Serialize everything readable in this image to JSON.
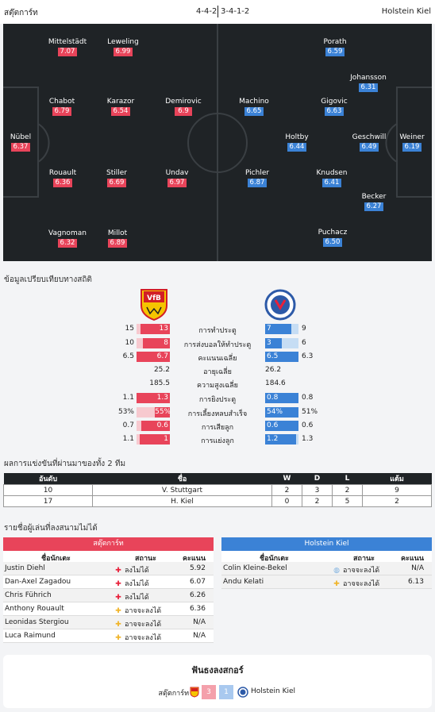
{
  "header": {
    "home_team": "สตุ๊ตการ์ท",
    "formation": "4-4-2",
    "away_formation": "3-4-1-2",
    "away_team": "Holstein Kiel"
  },
  "lineup": {
    "home": [
      {
        "name": "Mittelstädt",
        "rating": "7.07"
      },
      {
        "name": "Leweling",
        "rating": "6.99"
      },
      {
        "name": "Chabot",
        "rating": "6.79"
      },
      {
        "name": "Karazor",
        "rating": "6.54"
      },
      {
        "name": "Demirovic",
        "rating": "6.9"
      },
      {
        "name": "Nübel",
        "rating": "6.37"
      },
      {
        "name": "Rouault",
        "rating": "6.36"
      },
      {
        "name": "Stiller",
        "rating": "6.69"
      },
      {
        "name": "Undav",
        "rating": "6.97"
      },
      {
        "name": "Vagnoman",
        "rating": "6.32"
      },
      {
        "name": "Millot",
        "rating": "6.89"
      }
    ],
    "away": [
      {
        "name": "Porath",
        "rating": "6.59"
      },
      {
        "name": "Johansson",
        "rating": "6.31"
      },
      {
        "name": "Machino",
        "rating": "6.65"
      },
      {
        "name": "Gigovic",
        "rating": "6.63"
      },
      {
        "name": "Holtby",
        "rating": "6.44"
      },
      {
        "name": "Geschwill",
        "rating": "6.49"
      },
      {
        "name": "Weiner",
        "rating": "6.19"
      },
      {
        "name": "Pichler",
        "rating": "6.87"
      },
      {
        "name": "Knudsen",
        "rating": "6.41"
      },
      {
        "name": "Becker",
        "rating": "6.27"
      },
      {
        "name": "Puchacz",
        "rating": "6.50"
      }
    ]
  },
  "stats": {
    "title": "ข้อมูลเปรียบเทียบทางสถิติ",
    "rows": [
      {
        "label": "การทำประตู",
        "h_total": "15",
        "h_val": "13",
        "h_frac": 0.87,
        "a_val": "7",
        "a_total": "9",
        "a_frac": 0.78,
        "bar": true
      },
      {
        "label": "การส่งบอลให้ทำประตู",
        "h_total": "10",
        "h_val": "8",
        "h_frac": 0.8,
        "a_val": "3",
        "a_total": "6",
        "a_frac": 0.5,
        "bar": true
      },
      {
        "label": "คะแนนเฉลี่ย",
        "h_total": "6.5",
        "h_val": "6.7",
        "h_frac": 1.0,
        "a_val": "6.5",
        "a_total": "6.3",
        "a_frac": 1.0,
        "bar": true
      },
      {
        "label": "อายุเฉลี่ย",
        "h_val": "25.2",
        "a_val": "26.2",
        "bar": false
      },
      {
        "label": "ความสูงเฉลี่ย",
        "h_val": "185.5",
        "a_val": "184.6",
        "bar": false
      },
      {
        "label": "การยิงประตู",
        "h_total": "1.1",
        "h_val": "1.3",
        "h_frac": 1.0,
        "a_val": "0.8",
        "a_total": "0.8",
        "a_frac": 1.0,
        "bar": true
      },
      {
        "label": "การเลี้ยงหลบสำเร็จ",
        "h_total": "53%",
        "h_val": "55%",
        "h_frac": 0.45,
        "a_val": "54%",
        "a_total": "51%",
        "a_frac": 1.0,
        "bar": true
      },
      {
        "label": "การเสียลูก",
        "h_total": "0.7",
        "h_val": "0.6",
        "h_frac": 0.86,
        "a_val": "0.6",
        "a_total": "0.6",
        "a_frac": 1.0,
        "bar": true
      },
      {
        "label": "การแย่งลูก",
        "h_total": "1.1",
        "h_val": "1",
        "h_frac": 0.91,
        "a_val": "1.2",
        "a_total": "1.3",
        "a_frac": 0.92,
        "bar": true
      }
    ]
  },
  "standings": {
    "title": "ผลการแข่งขันที่ผ่านมาของทั้ง 2 ทีม",
    "headers": [
      "อันดับ",
      "ชื่อ",
      "W",
      "D",
      "L",
      "แต้ม"
    ],
    "rows": [
      [
        "10",
        "V. Stuttgart",
        "2",
        "3",
        "2",
        "9"
      ],
      [
        "17",
        "H. Kiel",
        "0",
        "2",
        "5",
        "2"
      ]
    ]
  },
  "injuries": {
    "title": "รายชื่อผู้เล่นที่ลงสนามไม่ได้",
    "columns": {
      "player": "ชื่อนักเตะ",
      "status": "สถานะ",
      "rating": "คะแนน"
    },
    "home": {
      "team": "สตุ๊ตการ์ท",
      "rows": [
        {
          "player": "Justin Diehl",
          "status": "ลงไม่ได้",
          "icon": "red-cross-icon",
          "rating": "5.92"
        },
        {
          "player": "Dan-Axel Zagadou",
          "status": "ลงไม่ได้",
          "icon": "red-cross-icon",
          "rating": "6.07"
        },
        {
          "player": "Chris Führich",
          "status": "ลงไม่ได้",
          "icon": "red-cross-icon",
          "rating": "6.26"
        },
        {
          "player": "Anthony Rouault",
          "status": "อาจจะลงได้",
          "icon": "yellow-cross-icon",
          "rating": "6.36"
        },
        {
          "player": "Leonidas Stergiou",
          "status": "อาจจะลงได้",
          "icon": "yellow-cross-icon",
          "rating": "N/A"
        },
        {
          "player": "Luca Raimund",
          "status": "อาจจะลงได้",
          "icon": "yellow-cross-icon",
          "rating": "N/A"
        }
      ]
    },
    "away": {
      "team": "Holstein Kiel",
      "rows": [
        {
          "player": "Colin Kleine-Bekel",
          "status": "อาจจะลงได้",
          "icon": "ball-icon",
          "rating": "N/A"
        },
        {
          "player": "Andu Kelati",
          "status": "อาจจะลงได้",
          "icon": "yellow-cross-icon",
          "rating": "6.13"
        }
      ]
    }
  },
  "h2h": {
    "title": "ฟันธงลงสกอร์",
    "home_team": "สตุ๊ตการ์ท",
    "home_score": "3",
    "away_score": "1",
    "away_team": "Holstein Kiel"
  },
  "colors": {
    "home": "#e8445a",
    "away": "#3b82d6",
    "pitch": "#1f2326"
  }
}
